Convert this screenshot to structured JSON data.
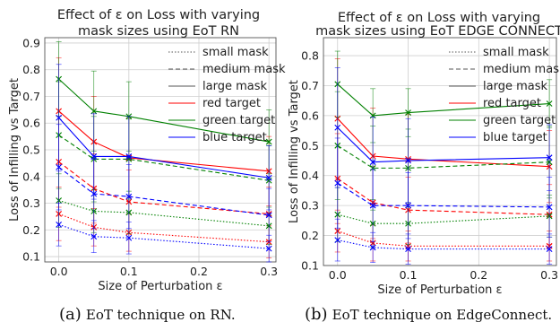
{
  "chart_data": [
    {
      "type": "line",
      "title_lines": [
        "Effect of ε on Loss with varying",
        "mask sizes using EoT RN"
      ],
      "xlabel": "Size of Perturbation ε",
      "ylabel": "Loss of Infilling vs Target",
      "xlim": [
        -0.02,
        0.31
      ],
      "ylim": [
        0.08,
        0.92
      ],
      "x": [
        0.0,
        0.05,
        0.1,
        0.3
      ],
      "xticks": [
        0.0,
        0.1,
        0.2,
        0.3
      ],
      "xtick_labels": [
        "0.0",
        "0.1",
        "0.2",
        "0.3"
      ],
      "yticks": [
        0.1,
        0.2,
        0.3,
        0.4,
        0.5,
        0.6,
        0.7,
        0.8,
        0.9
      ],
      "ytick_labels": [
        "0.1",
        "0.2",
        "0.3",
        "0.4",
        "0.5",
        "0.6",
        "0.7",
        "0.8",
        "0.9"
      ],
      "grid": true,
      "legend_position": "top-right",
      "series": [
        {
          "target": "red",
          "mask": "small",
          "values": [
            0.26,
            0.21,
            0.19,
            0.155
          ],
          "err": [
            0.1,
            0.07,
            0.07,
            0.06
          ]
        },
        {
          "target": "red",
          "mask": "medium",
          "values": [
            0.455,
            0.355,
            0.305,
            0.26
          ],
          "err": [
            0.17,
            0.13,
            0.12,
            0.1
          ]
        },
        {
          "target": "red",
          "mask": "large",
          "values": [
            0.645,
            0.53,
            0.47,
            0.42
          ],
          "err": [
            0.2,
            0.17,
            0.15,
            0.13
          ]
        },
        {
          "target": "green",
          "mask": "small",
          "values": [
            0.31,
            0.27,
            0.265,
            0.215
          ],
          "err": [
            0.1,
            0.08,
            0.08,
            0.07
          ]
        },
        {
          "target": "green",
          "mask": "medium",
          "values": [
            0.555,
            0.465,
            0.465,
            0.385
          ],
          "err": [
            0.2,
            0.16,
            0.15,
            0.13
          ]
        },
        {
          "target": "green",
          "mask": "large",
          "values": [
            0.765,
            0.645,
            0.625,
            0.53
          ],
          "err": [
            0.14,
            0.15,
            0.13,
            0.12
          ]
        },
        {
          "target": "blue",
          "mask": "small",
          "values": [
            0.22,
            0.175,
            0.17,
            0.13
          ],
          "err": [
            0.08,
            0.06,
            0.06,
            0.05
          ]
        },
        {
          "target": "blue",
          "mask": "medium",
          "values": [
            0.435,
            0.335,
            0.325,
            0.255
          ],
          "err": [
            0.16,
            0.13,
            0.12,
            0.1
          ]
        },
        {
          "target": "blue",
          "mask": "large",
          "values": [
            0.62,
            0.475,
            0.475,
            0.395
          ],
          "err": [
            0.2,
            0.16,
            0.15,
            0.12
          ]
        }
      ]
    },
    {
      "type": "line",
      "title_lines": [
        "Effect of ε on Loss with varying",
        "mask sizes using EoT EDGE CONNECT"
      ],
      "xlabel": "Size of Perturbation ε",
      "ylabel": "Loss of Infilling vs Target",
      "xlim": [
        -0.02,
        0.31
      ],
      "ylim": [
        0.1,
        0.86
      ],
      "x": [
        0.0,
        0.05,
        0.1,
        0.3
      ],
      "xticks": [
        0.0,
        0.1,
        0.2,
        0.3
      ],
      "xtick_labels": [
        "0.0",
        "0.1",
        "0.2",
        "0.3"
      ],
      "yticks": [
        0.1,
        0.2,
        0.3,
        0.4,
        0.5,
        0.6,
        0.7,
        0.8
      ],
      "ytick_labels": [
        "0.1",
        "0.2",
        "0.3",
        "0.4",
        "0.5",
        "0.6",
        "0.7",
        "0.8"
      ],
      "grid": true,
      "legend_position": "top-right",
      "series": [
        {
          "target": "red",
          "mask": "small",
          "values": [
            0.215,
            0.175,
            0.165,
            0.165
          ],
          "err": [
            0.07,
            0.06,
            0.05,
            0.05
          ]
        },
        {
          "target": "red",
          "mask": "medium",
          "values": [
            0.39,
            0.31,
            0.285,
            0.27
          ],
          "err": [
            0.15,
            0.12,
            0.11,
            0.1
          ]
        },
        {
          "target": "red",
          "mask": "large",
          "values": [
            0.59,
            0.465,
            0.455,
            0.43
          ],
          "err": [
            0.2,
            0.16,
            0.15,
            0.12
          ]
        },
        {
          "target": "green",
          "mask": "small",
          "values": [
            0.27,
            0.24,
            0.24,
            0.265
          ],
          "err": [
            0.09,
            0.08,
            0.07,
            0.07
          ]
        },
        {
          "target": "green",
          "mask": "medium",
          "values": [
            0.5,
            0.425,
            0.425,
            0.445
          ],
          "err": [
            0.18,
            0.14,
            0.13,
            0.12
          ]
        },
        {
          "target": "green",
          "mask": "large",
          "values": [
            0.705,
            0.6,
            0.61,
            0.64
          ],
          "err": [
            0.11,
            0.09,
            0.08,
            0.08
          ]
        },
        {
          "target": "blue",
          "mask": "small",
          "values": [
            0.185,
            0.16,
            0.155,
            0.155
          ],
          "err": [
            0.07,
            0.05,
            0.05,
            0.05
          ]
        },
        {
          "target": "blue",
          "mask": "medium",
          "values": [
            0.375,
            0.3,
            0.3,
            0.295
          ],
          "err": [
            0.15,
            0.12,
            0.11,
            0.1
          ]
        },
        {
          "target": "blue",
          "mask": "large",
          "values": [
            0.56,
            0.445,
            0.45,
            0.46
          ],
          "err": [
            0.2,
            0.15,
            0.14,
            0.11
          ]
        }
      ]
    }
  ],
  "legend": {
    "mask_entries": [
      {
        "key": "small",
        "label": "small mask"
      },
      {
        "key": "medium",
        "label": "medium mask"
      },
      {
        "key": "large",
        "label": "large mask"
      }
    ],
    "target_entries": [
      {
        "key": "red",
        "label": "red target",
        "color": "#ff0000"
      },
      {
        "key": "green",
        "label": "green target",
        "color": "#008000"
      },
      {
        "key": "blue",
        "label": "blue target",
        "color": "#0000ff"
      }
    ]
  },
  "colors": {
    "red": "#ff0000",
    "green": "#008000",
    "blue": "#0000ff",
    "grid": "#cfcfcf",
    "axis": "#555555"
  },
  "captions": [
    {
      "label": "(a)",
      "text": "EoT technique on RN."
    },
    {
      "label": "(b)",
      "text": "EoT technique on EdgeConnect."
    }
  ]
}
